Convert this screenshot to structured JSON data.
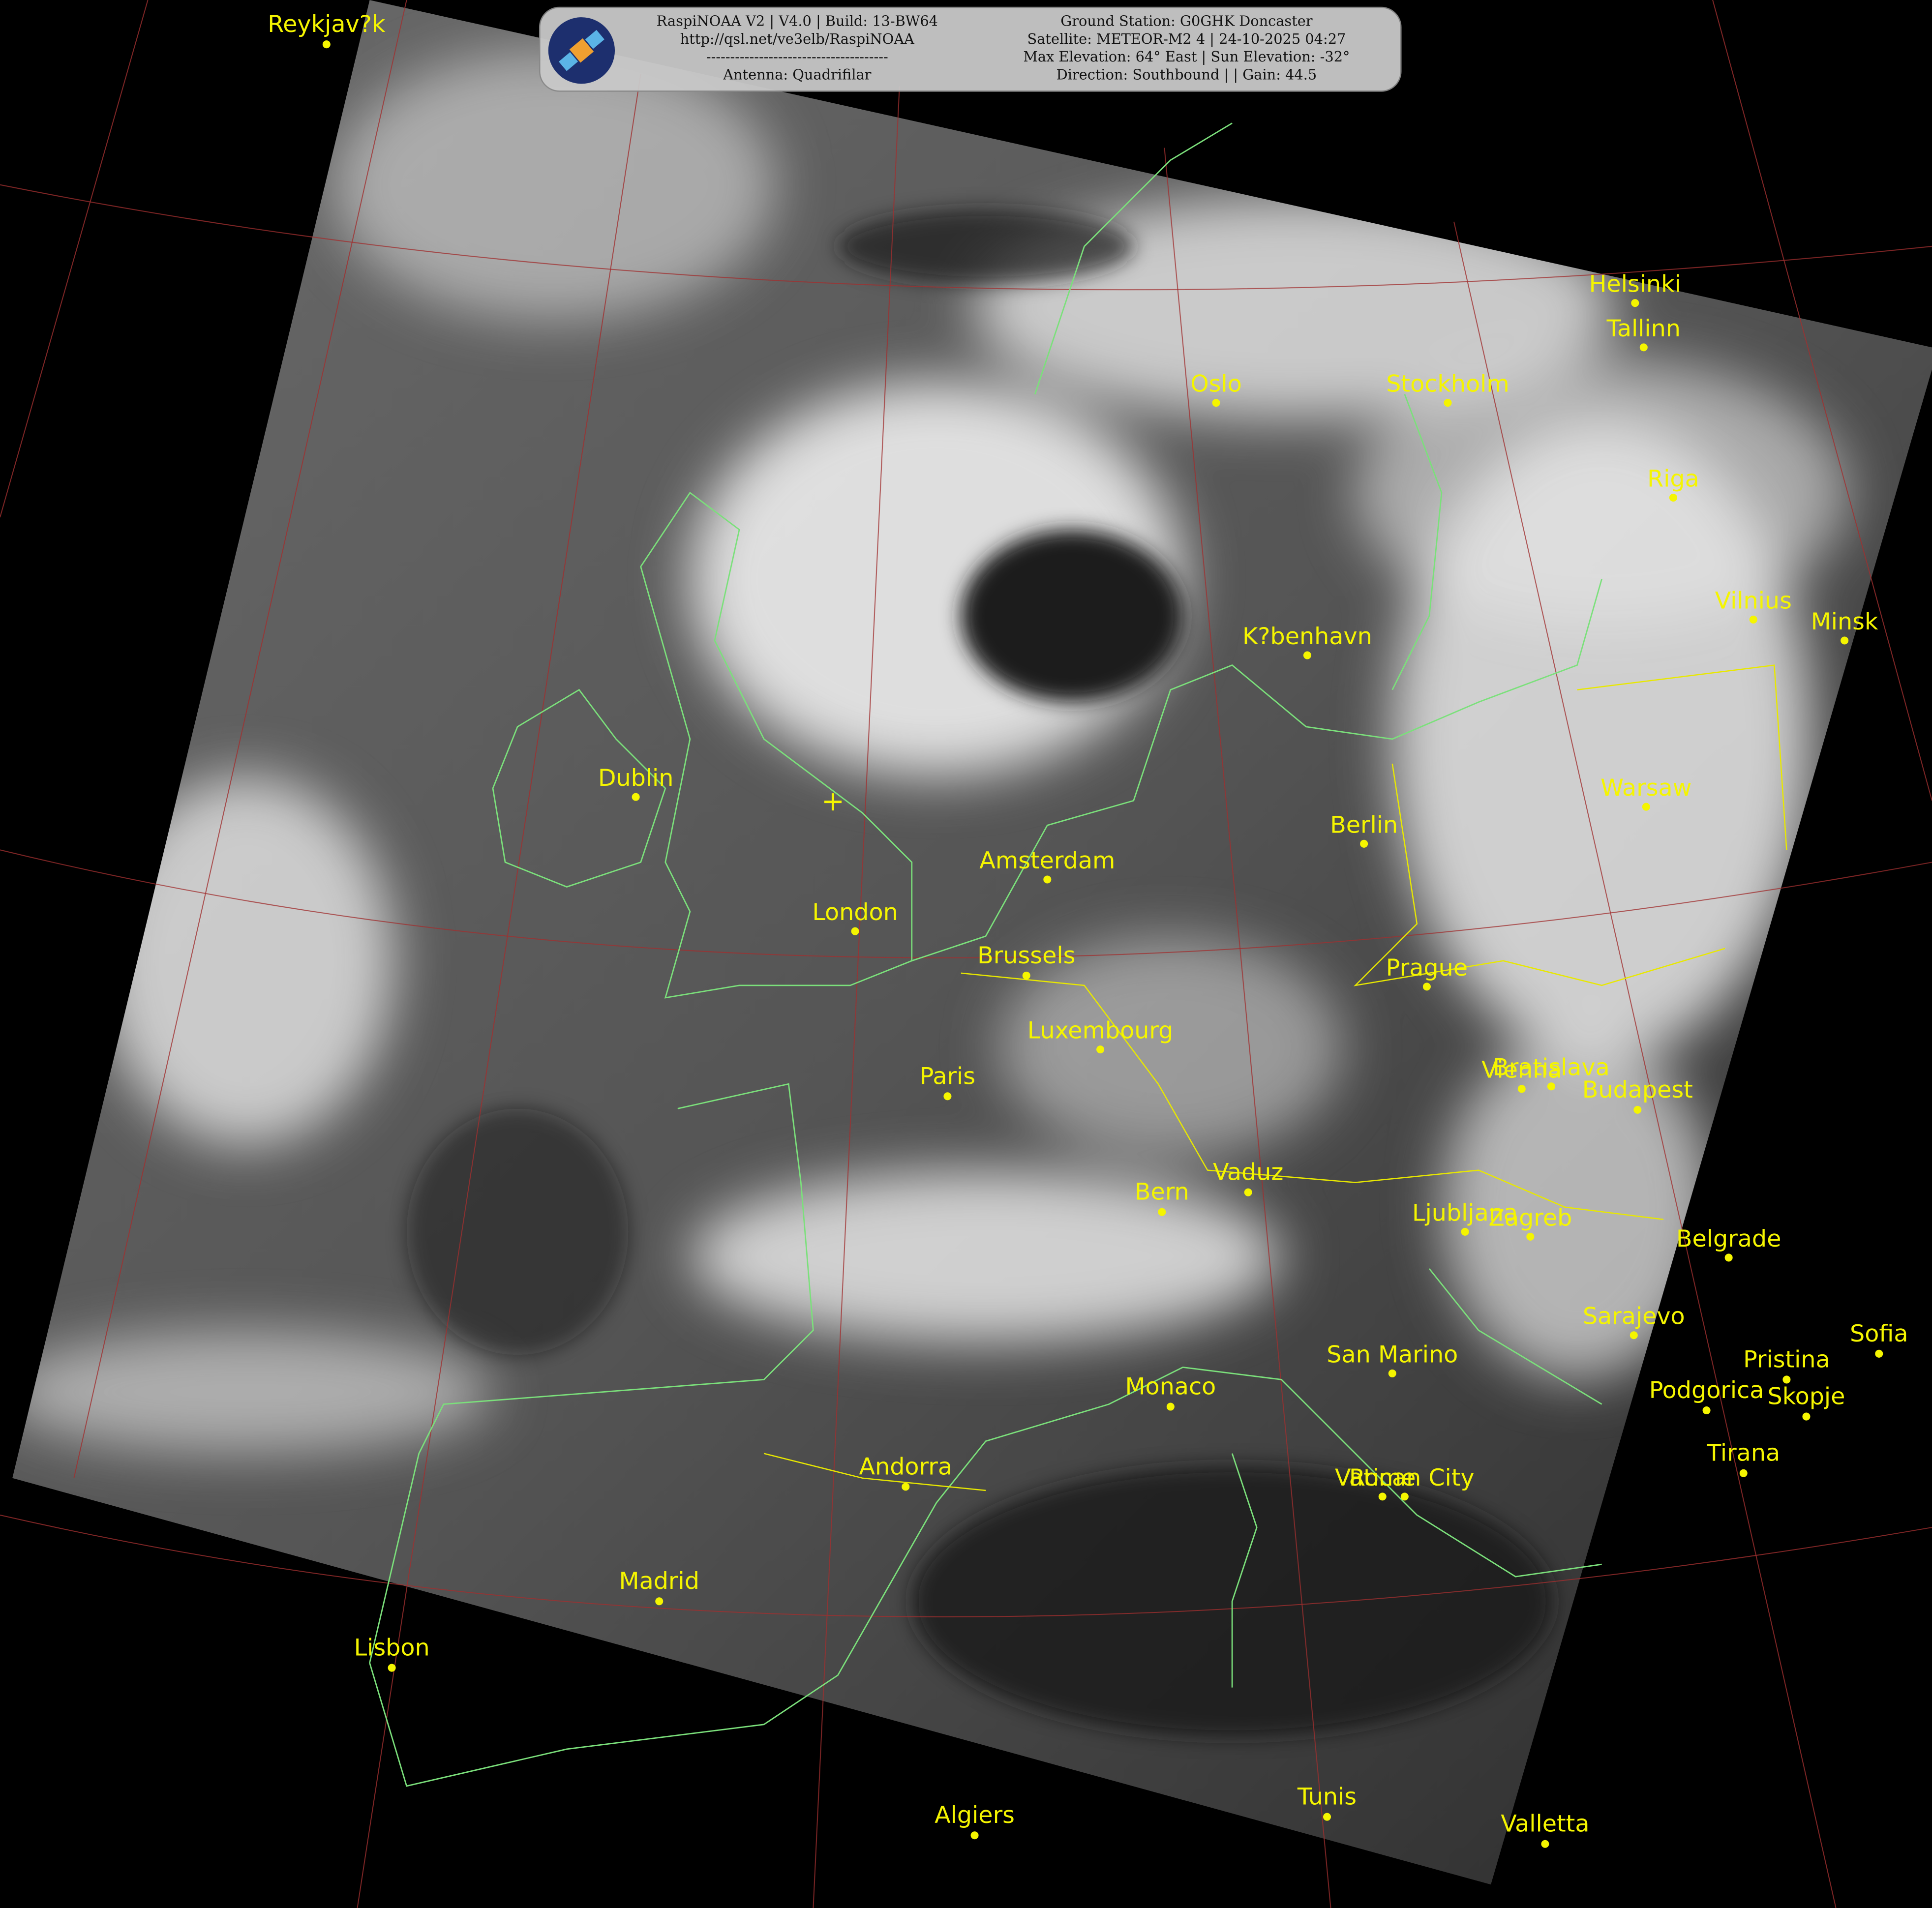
{
  "header": {
    "left": [
      "RaspiNOAA V2 | V4.0 | Build: 13-BW64",
      "http://qsl.net/ve3elb/RaspiNOAA",
      "--------------------------------------",
      "Antenna: Quadrifilar"
    ],
    "right": [
      "Ground Station: G0GHK Doncaster",
      "Satellite: METEOR-M2 4 | 24-10-2025 04:27",
      "Max Elevation: 64° East | Sun Elevation: -32°",
      "Direction: Southbound | | Gain: 44.5"
    ]
  },
  "cities": [
    "Reykjav?k",
    "Helsinki",
    "Tallinn",
    "Oslo",
    "Stockholm",
    "Riga",
    "Vilnius",
    "Minsk",
    "K?benhavn",
    "Dublin",
    "Warsaw",
    "Berlin",
    "Amsterdam",
    "London",
    "Brussels",
    "Prague",
    "Luxembourg",
    "Paris",
    "Bratislava",
    "Vienna",
    "Budapest",
    "Bern",
    "Vaduz",
    "Ljubljana",
    "Zagreb",
    "Belgrade",
    "Sarajevo",
    "Sofia",
    "San Marino",
    "Pristina",
    "Monaco",
    "Podgorica",
    "Skopje",
    "Tirana",
    "Andorra",
    "Vatican City",
    "Rome",
    "Madrid",
    "Lisbon",
    "Algiers",
    "Tunis",
    "Valletta"
  ]
}
